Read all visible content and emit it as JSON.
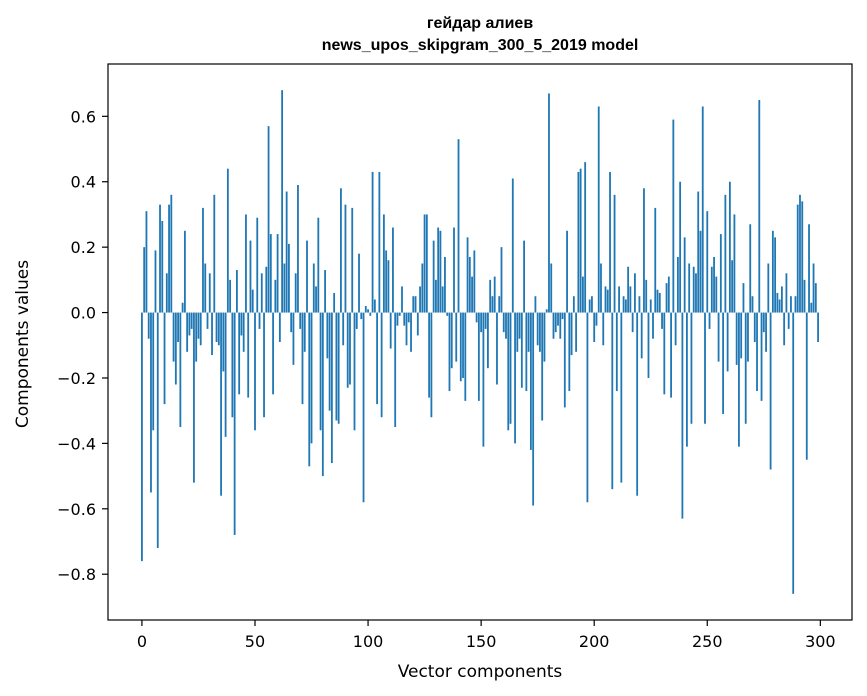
{
  "chart_data": {
    "type": "bar",
    "title_line1": "гейдар алиев",
    "title_line2": "news_upos_skipgram_300_5_2019 model",
    "xlabel": "Vector components",
    "ylabel": "Components values",
    "xlim": [
      -15,
      314
    ],
    "ylim": [
      -0.94,
      0.76
    ],
    "xticks": [
      0,
      50,
      100,
      150,
      200,
      250,
      300
    ],
    "xtick_labels": [
      "0",
      "50",
      "100",
      "150",
      "200",
      "250",
      "300"
    ],
    "yticks": [
      -0.8,
      -0.6,
      -0.4,
      -0.2,
      0.0,
      0.2,
      0.4,
      0.6
    ],
    "ytick_labels": [
      "−0.8",
      "−0.6",
      "−0.4",
      "−0.2",
      "0.0",
      "0.2",
      "0.4",
      "0.6"
    ],
    "bar_color": "#1f77b4",
    "x": "component index 0..299",
    "values": [
      -0.76,
      0.2,
      0.31,
      -0.08,
      -0.55,
      -0.36,
      0.19,
      -0.72,
      0.33,
      0.28,
      -0.28,
      0.12,
      0.33,
      0.36,
      -0.15,
      -0.22,
      -0.09,
      -0.35,
      0.03,
      0.25,
      -0.12,
      -0.07,
      -0.05,
      -0.52,
      -0.15,
      -0.08,
      -0.1,
      0.32,
      0.15,
      -0.05,
      0.12,
      -0.13,
      0.36,
      -0.09,
      -0.1,
      -0.56,
      -0.18,
      -0.38,
      0.44,
      0.1,
      -0.32,
      -0.68,
      0.13,
      -0.25,
      -0.07,
      -0.12,
      0.3,
      -0.26,
      0.22,
      0.07,
      -0.36,
      0.29,
      -0.05,
      0.12,
      -0.32,
      0.14,
      0.57,
      0.24,
      -0.25,
      0.1,
      0.24,
      -0.09,
      0.68,
      0.15,
      0.37,
      0.21,
      -0.06,
      -0.16,
      0.12,
      0.39,
      -0.05,
      -0.28,
      -0.12,
      0.22,
      -0.47,
      -0.4,
      0.15,
      0.08,
      0.29,
      -0.36,
      -0.5,
      0.13,
      -0.14,
      -0.3,
      -0.46,
      0.06,
      -0.33,
      -0.34,
      0.38,
      -0.1,
      0.33,
      -0.23,
      -0.22,
      0.32,
      -0.36,
      -0.05,
      0.18,
      -0.02,
      -0.58,
      0.02,
      0.01,
      -0.01,
      0.43,
      0.04,
      -0.28,
      0.43,
      -0.32,
      0.3,
      0.19,
      0.16,
      -0.11,
      0.26,
      -0.35,
      -0.04,
      -0.01,
      0.08,
      -0.04,
      -0.1,
      -0.03,
      -0.12,
      0.05,
      0.05,
      -0.07,
      0.08,
      0.15,
      0.3,
      0.3,
      -0.26,
      -0.32,
      0.22,
      0.1,
      0.26,
      0.25,
      0.08,
      0.17,
      -0.01,
      -0.24,
      -0.17,
      0.26,
      -0.15,
      0.53,
      -0.21,
      -0.2,
      -0.27,
      0.23,
      0.17,
      0.11,
      0.19,
      -0.03,
      -0.27,
      -0.06,
      -0.41,
      -0.05,
      -0.17,
      0.1,
      0.05,
      0.11,
      -0.22,
      0.05,
      0.2,
      -0.06,
      -0.08,
      -0.36,
      -0.34,
      0.41,
      -0.4,
      -0.12,
      -0.08,
      -0.23,
      0.22,
      -0.24,
      -0.12,
      -0.42,
      -0.59,
      0.05,
      -0.1,
      -0.12,
      -0.33,
      -0.15,
      0.01,
      0.67,
      0.15,
      -0.08,
      -0.06,
      -0.04,
      -0.08,
      -0.02,
      -0.29,
      0.25,
      -0.24,
      -0.13,
      0.05,
      -0.12,
      0.43,
      0.44,
      0.11,
      0.46,
      -0.58,
      0.04,
      0.05,
      -0.09,
      -0.04,
      0.63,
      0.15,
      -0.1,
      0.08,
      0.07,
      0.43,
      -0.54,
      0.36,
      -0.24,
      0.08,
      -0.52,
      0.05,
      0.04,
      0.14,
      0.08,
      -0.06,
      0.12,
      -0.56,
      0.05,
      -0.14,
      0.38,
      0.1,
      -0.2,
      0.04,
      -0.08,
      0.32,
      0.07,
      0.06,
      -0.05,
      -0.25,
      0.09,
      0.11,
      -0.26,
      0.59,
      -0.1,
      0.17,
      0.4,
      -0.63,
      0.23,
      -0.41,
      0.15,
      -0.34,
      0.14,
      0.12,
      0.37,
      0.25,
      0.63,
      -0.34,
      0.31,
      -0.05,
      0.14,
      0.17,
      0.11,
      -0.15,
      0.24,
      -0.31,
      0.36,
      -0.18,
      0.4,
      0.16,
      0.3,
      -0.16,
      -0.41,
      -0.14,
      0.09,
      -0.34,
      -0.15,
      0.27,
      0.05,
      -0.09,
      -0.24,
      0.65,
      -0.27,
      -0.06,
      -0.12,
      0.15,
      -0.48,
      0.25,
      0.23,
      0.06,
      0.04,
      0.08,
      -0.1,
      0.12,
      -0.05,
      0.05,
      -0.86,
      0.05,
      0.33,
      0.36,
      0.34,
      0.1,
      -0.45,
      0.27,
      0.03,
      0.15,
      0.09,
      -0.09
    ]
  }
}
